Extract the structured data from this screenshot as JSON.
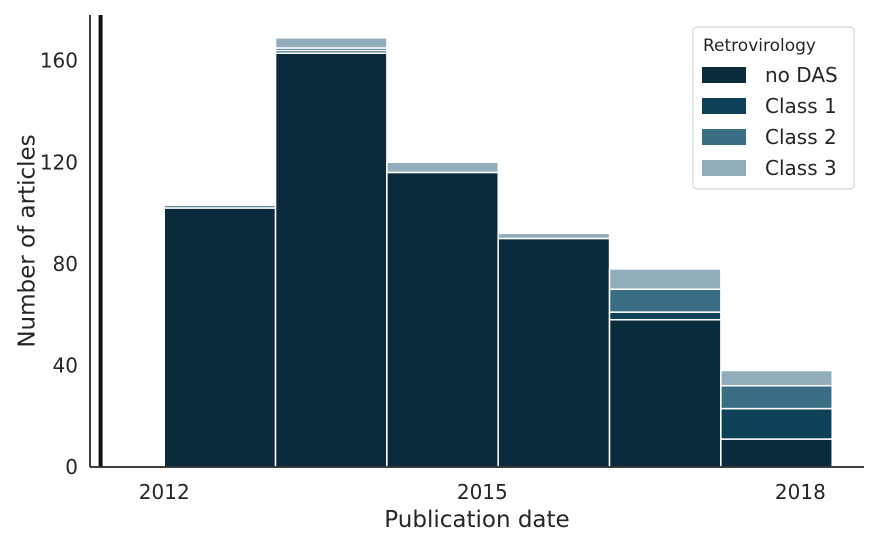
{
  "chart_data": {
    "type": "bar",
    "stacked": true,
    "xlabel": "Publication date",
    "ylabel": "Number of articles",
    "xtick_labels": [
      "2012",
      "2015",
      "2018"
    ],
    "yticks": [
      0,
      40,
      80,
      120,
      160
    ],
    "ylim": [
      0,
      178
    ],
    "categories": [
      "2012",
      "2013",
      "2014",
      "2015",
      "2016",
      "2017"
    ],
    "series": [
      {
        "name": "no DAS",
        "color": "#0a2b3c",
        "values": [
          102,
          163,
          116,
          90,
          58,
          11
        ]
      },
      {
        "name": "Class 1",
        "color": "#0e4057",
        "values": [
          0,
          1,
          0,
          0,
          3,
          12
        ]
      },
      {
        "name": "Class 2",
        "color": "#3a6e84",
        "values": [
          1,
          1,
          0,
          0,
          9,
          9
        ]
      },
      {
        "name": "Class 3",
        "color": "#91adbb",
        "values": [
          0,
          4,
          4,
          2,
          8,
          6
        ]
      }
    ],
    "legend": {
      "title": "Retrovirology",
      "position": "top-right"
    },
    "reference_line": {
      "x": "2011.4",
      "color": "#111111"
    },
    "grid": false
  }
}
